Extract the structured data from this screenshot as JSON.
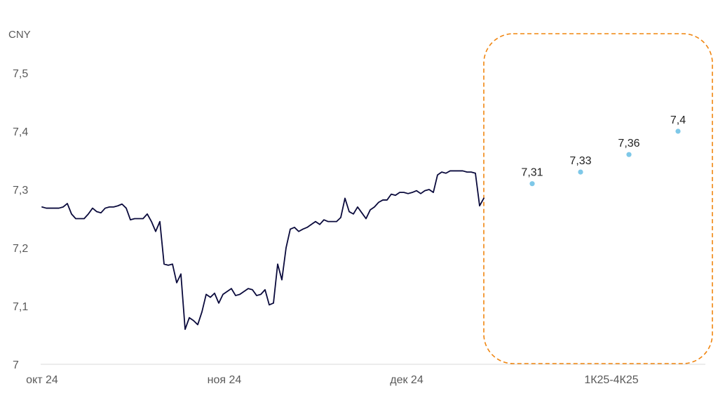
{
  "chart_data": {
    "type": "line",
    "ylabel": "CNY",
    "ylim": [
      7.0,
      7.5
    ],
    "y_ticks": [
      "7",
      "7,1",
      "7,2",
      "7,3",
      "7,4",
      "7,5"
    ],
    "y_tick_values": [
      7.0,
      7.1,
      7.2,
      7.3,
      7.4,
      7.5
    ],
    "x_tick_labels": [
      "окт 24",
      "ноя 24",
      "дек 24",
      "1К25-4К25"
    ],
    "grid": false,
    "series": [
      {
        "kind": "historical",
        "x_range": [
          "2024-10-01",
          "2024-12-31"
        ],
        "values": [
          7.27,
          7.268,
          7.268,
          7.268,
          7.268,
          7.27,
          7.276,
          7.258,
          7.25,
          7.25,
          7.25,
          7.258,
          7.268,
          7.262,
          7.26,
          7.268,
          7.27,
          7.27,
          7.272,
          7.275,
          7.268,
          7.248,
          7.25,
          7.25,
          7.25,
          7.258,
          7.245,
          7.228,
          7.245,
          7.172,
          7.17,
          7.172,
          7.14,
          7.155,
          7.06,
          7.08,
          7.075,
          7.068,
          7.09,
          7.12,
          7.115,
          7.122,
          7.105,
          7.12,
          7.125,
          7.13,
          7.118,
          7.12,
          7.125,
          7.13,
          7.128,
          7.118,
          7.12,
          7.128,
          7.102,
          7.105,
          7.172,
          7.145,
          7.2,
          7.232,
          7.235,
          7.228,
          7.232,
          7.235,
          7.24,
          7.245,
          7.24,
          7.248,
          7.245,
          7.245,
          7.245,
          7.252,
          7.285,
          7.262,
          7.258,
          7.27,
          7.26,
          7.25,
          7.265,
          7.27,
          7.278,
          7.282,
          7.282,
          7.292,
          7.29,
          7.295,
          7.295,
          7.293,
          7.295,
          7.298,
          7.293,
          7.298,
          7.3,
          7.295,
          7.325,
          7.33,
          7.328,
          7.332,
          7.332,
          7.332,
          7.332,
          7.33,
          7.33,
          7.328,
          7.272,
          7.285
        ]
      },
      {
        "kind": "forecast",
        "categories": [
          "1К25",
          "2К25",
          "3К25",
          "4К25"
        ],
        "values": [
          7.31,
          7.33,
          7.36,
          7.4
        ],
        "labels": [
          "7,31",
          "7,33",
          "7,36",
          "7,4"
        ]
      }
    ],
    "annotations": [
      {
        "type": "dashed-rounded-box",
        "encloses": "forecast"
      }
    ],
    "colors": {
      "line": "#0a0a3c",
      "forecast_points": "#7ec8e8",
      "box": "#f0850f",
      "axis": "#d9d9d9",
      "tick_text": "#595959"
    }
  }
}
